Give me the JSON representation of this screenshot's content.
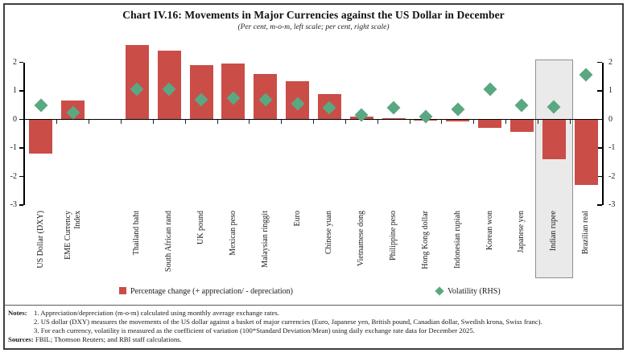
{
  "chart": {
    "title": "Chart IV.16: Movements in Major Currencies against the US Dollar in December",
    "subtitle": "(Per cent, m-o-m, left scale; per cent, right scale)"
  },
  "chart_data": {
    "type": "bar",
    "categories": [
      "US Dollar (DXY)",
      "EME Currency\nIndex",
      "Thailand baht",
      "South African rand",
      "UK pound",
      "Mexican peso",
      "Malaysian ringgit",
      "Euro",
      "Chinese yuan",
      "Vietnamese dong",
      "Philippine peso",
      "Hong Kong dollar",
      "Indonesian rupiah",
      "Korean won",
      "Japanese yen",
      "Indian rupee",
      "Brazilian real"
    ],
    "series": [
      {
        "name": "Percentage change (+ appreciation/ - depreciation)",
        "type": "bar",
        "axis": "left",
        "color": "#CA4D48",
        "values": [
          -1.2,
          0.65,
          2.6,
          2.4,
          1.9,
          1.95,
          1.6,
          1.35,
          0.9,
          0.1,
          0.04,
          -0.05,
          -0.08,
          -0.3,
          -0.45,
          -1.4,
          -2.3
        ]
      },
      {
        "name": "Volatility (RHS)",
        "type": "scatter",
        "marker": "diamond",
        "axis": "right",
        "color": "#5AA882",
        "values": [
          0.5,
          0.25,
          1.05,
          1.05,
          0.7,
          0.75,
          0.7,
          0.55,
          0.4,
          0.15,
          0.4,
          0.1,
          0.35,
          1.05,
          0.5,
          0.45,
          1.55
        ]
      }
    ],
    "left_axis": {
      "ticks": [
        2,
        1,
        0,
        -1,
        -2,
        -3
      ],
      "range": [
        -3,
        2
      ]
    },
    "right_axis": {
      "ticks": [
        2,
        1,
        0,
        -1,
        -2,
        -3
      ],
      "range": [
        -3,
        2
      ]
    },
    "grid": false,
    "legend_position": "bottom",
    "group_separator_after_index": 1,
    "highlight": {
      "category": "Indian rupee",
      "fill": "#EAEAEA",
      "border": "#8F8F8F"
    }
  },
  "legend": [
    {
      "label": "Percentage change (+ appreciation/ - depreciation)",
      "marker": "square"
    },
    {
      "label": "Volatility (RHS)",
      "marker": "diamond"
    }
  ],
  "notes": {
    "label": "Notes:",
    "items": [
      "1.  Appreciation/depreciation (m-o-m) calculated using monthly average exchange rates.",
      "2.  US dollar (DXY) measures the movements of the US dollar against a basket of major currencies (Euro, Japanese yen, British pound, Canadian dollar, Swedish krona, Swiss franc).",
      "3.  For each currency, volatility is measured as the coefficient of variation (100*Standard Deviation/Mean) using daily exchange rate data for December 2025."
    ],
    "sources_label": "Sources:",
    "sources": "FBIL; Thomson Reuters; and RBI staff calculations."
  }
}
